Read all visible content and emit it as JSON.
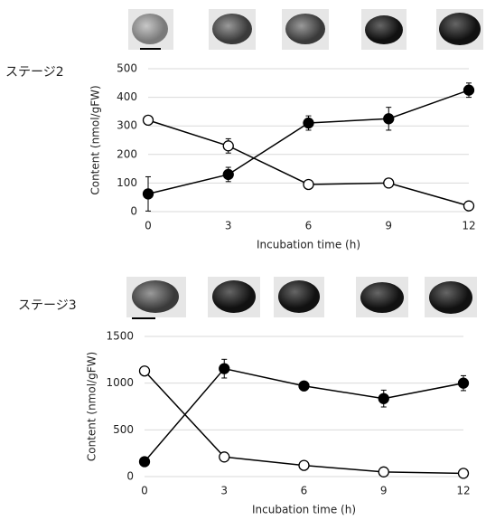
{
  "chart_data": [
    {
      "type": "line",
      "title": "ステージ2",
      "x_label": "Incubation time (h)",
      "y_label": "Content (nmol/gFW)",
      "x": [
        0,
        3,
        6,
        9,
        12
      ],
      "xlim": [
        0,
        12
      ],
      "xticks": [
        0,
        3,
        6,
        9,
        12
      ],
      "ylim": [
        0,
        500
      ],
      "yticks": [
        0,
        100,
        200,
        300,
        400,
        500
      ],
      "grid": true,
      "series": [
        {
          "color": "#000000",
          "values": [
            62,
            130,
            310,
            325,
            425
          ],
          "errors": [
            60,
            25,
            25,
            40,
            25
          ]
        },
        {
          "color": "#ffffff",
          "values": [
            320,
            230,
            95,
            100,
            20
          ],
          "errors": [
            null,
            25,
            null,
            null,
            null
          ]
        }
      ]
    },
    {
      "type": "line",
      "title": "ステージ3",
      "x_label": "Incubation time (h)",
      "y_label": "Content (nmol/gFW)",
      "x": [
        0,
        3,
        6,
        9,
        12
      ],
      "xlim": [
        0,
        12
      ],
      "xticks": [
        0,
        3,
        6,
        9,
        12
      ],
      "ylim": [
        0,
        1500
      ],
      "yticks": [
        0,
        500,
        1000,
        1500
      ],
      "grid": true,
      "series": [
        {
          "color": "#000000",
          "values": [
            160,
            1155,
            970,
            835,
            1000
          ],
          "errors": [
            null,
            100,
            null,
            90,
            80
          ]
        },
        {
          "color": "#ffffff",
          "values": [
            1130,
            210,
            120,
            50,
            35
          ],
          "errors": [
            null,
            null,
            null,
            null,
            null
          ]
        }
      ]
    }
  ]
}
